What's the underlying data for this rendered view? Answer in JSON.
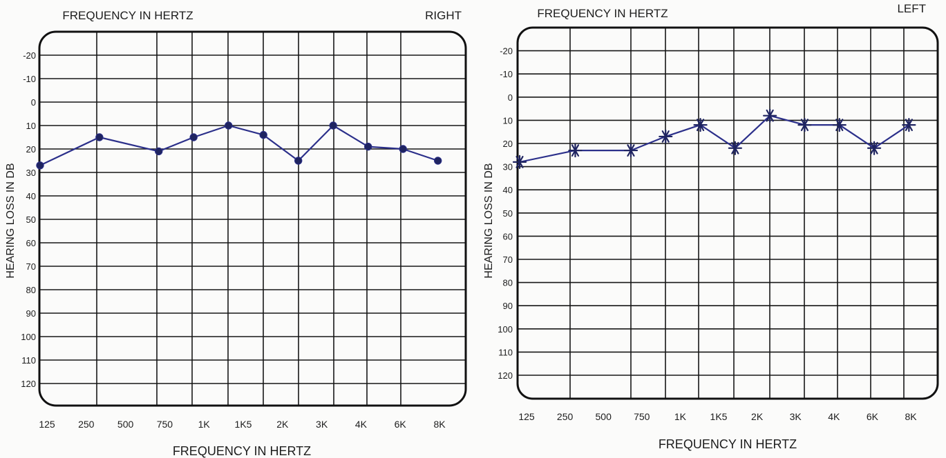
{
  "chart_data": [
    {
      "type": "line",
      "ear": "RIGHT",
      "top_title": "FREQUENCY IN HERTZ",
      "xlabel": "FREQUENCY IN HERTZ",
      "ylabel": "HEARING LOSS IN DB",
      "categories": [
        "125",
        "250",
        "500",
        "750",
        "1K",
        "1K5",
        "2K",
        "3K",
        "4K",
        "6K",
        "8K"
      ],
      "y_ticks": [
        "-20",
        "-10",
        "0",
        "10",
        "20",
        "30",
        "40",
        "50",
        "60",
        "70",
        "80",
        "90",
        "100",
        "110",
        "120"
      ],
      "ylim": [
        -30,
        130
      ],
      "y_inverted": true,
      "grid": true,
      "marker": "circle",
      "series_color": "#2b2f8a",
      "points": [
        {
          "x": 0,
          "y": 27
        },
        {
          "x": 1.7,
          "y": 15
        },
        {
          "x": 3.4,
          "y": 21
        },
        {
          "x": 4.4,
          "y": 15
        },
        {
          "x": 5.4,
          "y": 10
        },
        {
          "x": 6.4,
          "y": 14
        },
        {
          "x": 7.4,
          "y": 25
        },
        {
          "x": 8.4,
          "y": 10
        },
        {
          "x": 9.4,
          "y": 19
        },
        {
          "x": 10.4,
          "y": 20
        },
        {
          "x": 11.4,
          "y": 25
        }
      ]
    },
    {
      "type": "line",
      "ear": "LEFT",
      "top_title": "FREQUENCY IN HERTZ",
      "xlabel": "FREQUENCY IN HERTZ",
      "ylabel": "HEARING LOSS IN DB",
      "categories": [
        "125",
        "250",
        "500",
        "750",
        "1K",
        "1K5",
        "2K",
        "3K",
        "4K",
        "6K",
        "8K"
      ],
      "y_ticks": [
        "-20",
        "-10",
        "0",
        "10",
        "20",
        "30",
        "40",
        "50",
        "60",
        "70",
        "80",
        "90",
        "100",
        "110",
        "120"
      ],
      "ylim": [
        -30,
        130
      ],
      "y_inverted": true,
      "grid": true,
      "marker": "asterisk",
      "series_color": "#2b2f8a",
      "points": [
        {
          "x": 0,
          "y": 28
        },
        {
          "x": 1.6,
          "y": 23
        },
        {
          "x": 3.2,
          "y": 23
        },
        {
          "x": 4.2,
          "y": 17
        },
        {
          "x": 5.2,
          "y": 12
        },
        {
          "x": 6.2,
          "y": 22
        },
        {
          "x": 7.2,
          "y": 8
        },
        {
          "x": 8.2,
          "y": 12
        },
        {
          "x": 9.2,
          "y": 12
        },
        {
          "x": 10.2,
          "y": 22
        },
        {
          "x": 11.2,
          "y": 12
        }
      ]
    }
  ]
}
